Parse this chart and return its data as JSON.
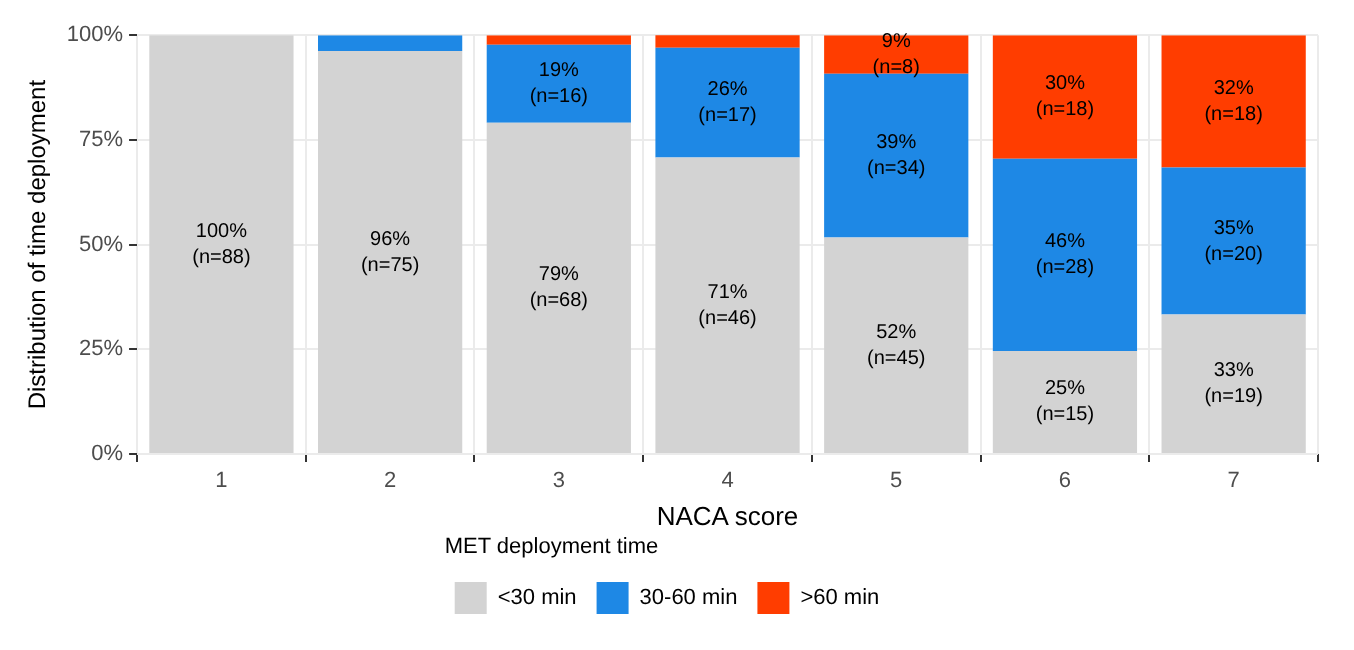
{
  "chart_data": {
    "type": "bar",
    "stacked": true,
    "xlabel": "NACA score",
    "ylabel": "Distribution of time deployment",
    "legend_title": "MET deployment time",
    "legend": "bottom",
    "grid": true,
    "categories": [
      "1",
      "2",
      "3",
      "4",
      "5",
      "6",
      "7"
    ],
    "ylim": [
      0,
      100
    ],
    "yticks": [
      {
        "value": 0,
        "label": "0%"
      },
      {
        "value": 25,
        "label": "25%"
      },
      {
        "value": 50,
        "label": "50%"
      },
      {
        "value": 75,
        "label": "75%"
      },
      {
        "value": 100,
        "label": "100%"
      }
    ],
    "series": [
      {
        "name": "<30 min",
        "color": "#d3d3d3",
        "values": [
          100,
          96.2,
          79.1,
          70.8,
          51.7,
          24.6,
          33.3
        ],
        "value_labels": [
          "100%\n(n=88)",
          "96%\n(n=75)",
          "79%\n(n=68)",
          "71%\n(n=46)",
          "52%\n(n=45)",
          "25%\n(n=15)",
          "33%\n(n=19)"
        ]
      },
      {
        "name": "30-60 min",
        "color": "#1e88e5",
        "values": [
          0,
          3.8,
          18.6,
          26.2,
          39.1,
          45.9,
          35.1
        ],
        "value_labels": [
          null,
          null,
          "19%\n(n=16)",
          "26%\n(n=17)",
          "39%\n(n=34)",
          "46%\n(n=28)",
          "35%\n(n=20)"
        ]
      },
      {
        "name": ">60 min",
        "color": "#ff3d00",
        "values": [
          0,
          0,
          2.3,
          3.1,
          9.2,
          29.5,
          31.6
        ],
        "value_labels": [
          null,
          null,
          null,
          null,
          "9%\n(n=8)",
          "30%\n(n=18)",
          "32%\n(n=18)"
        ]
      }
    ]
  }
}
